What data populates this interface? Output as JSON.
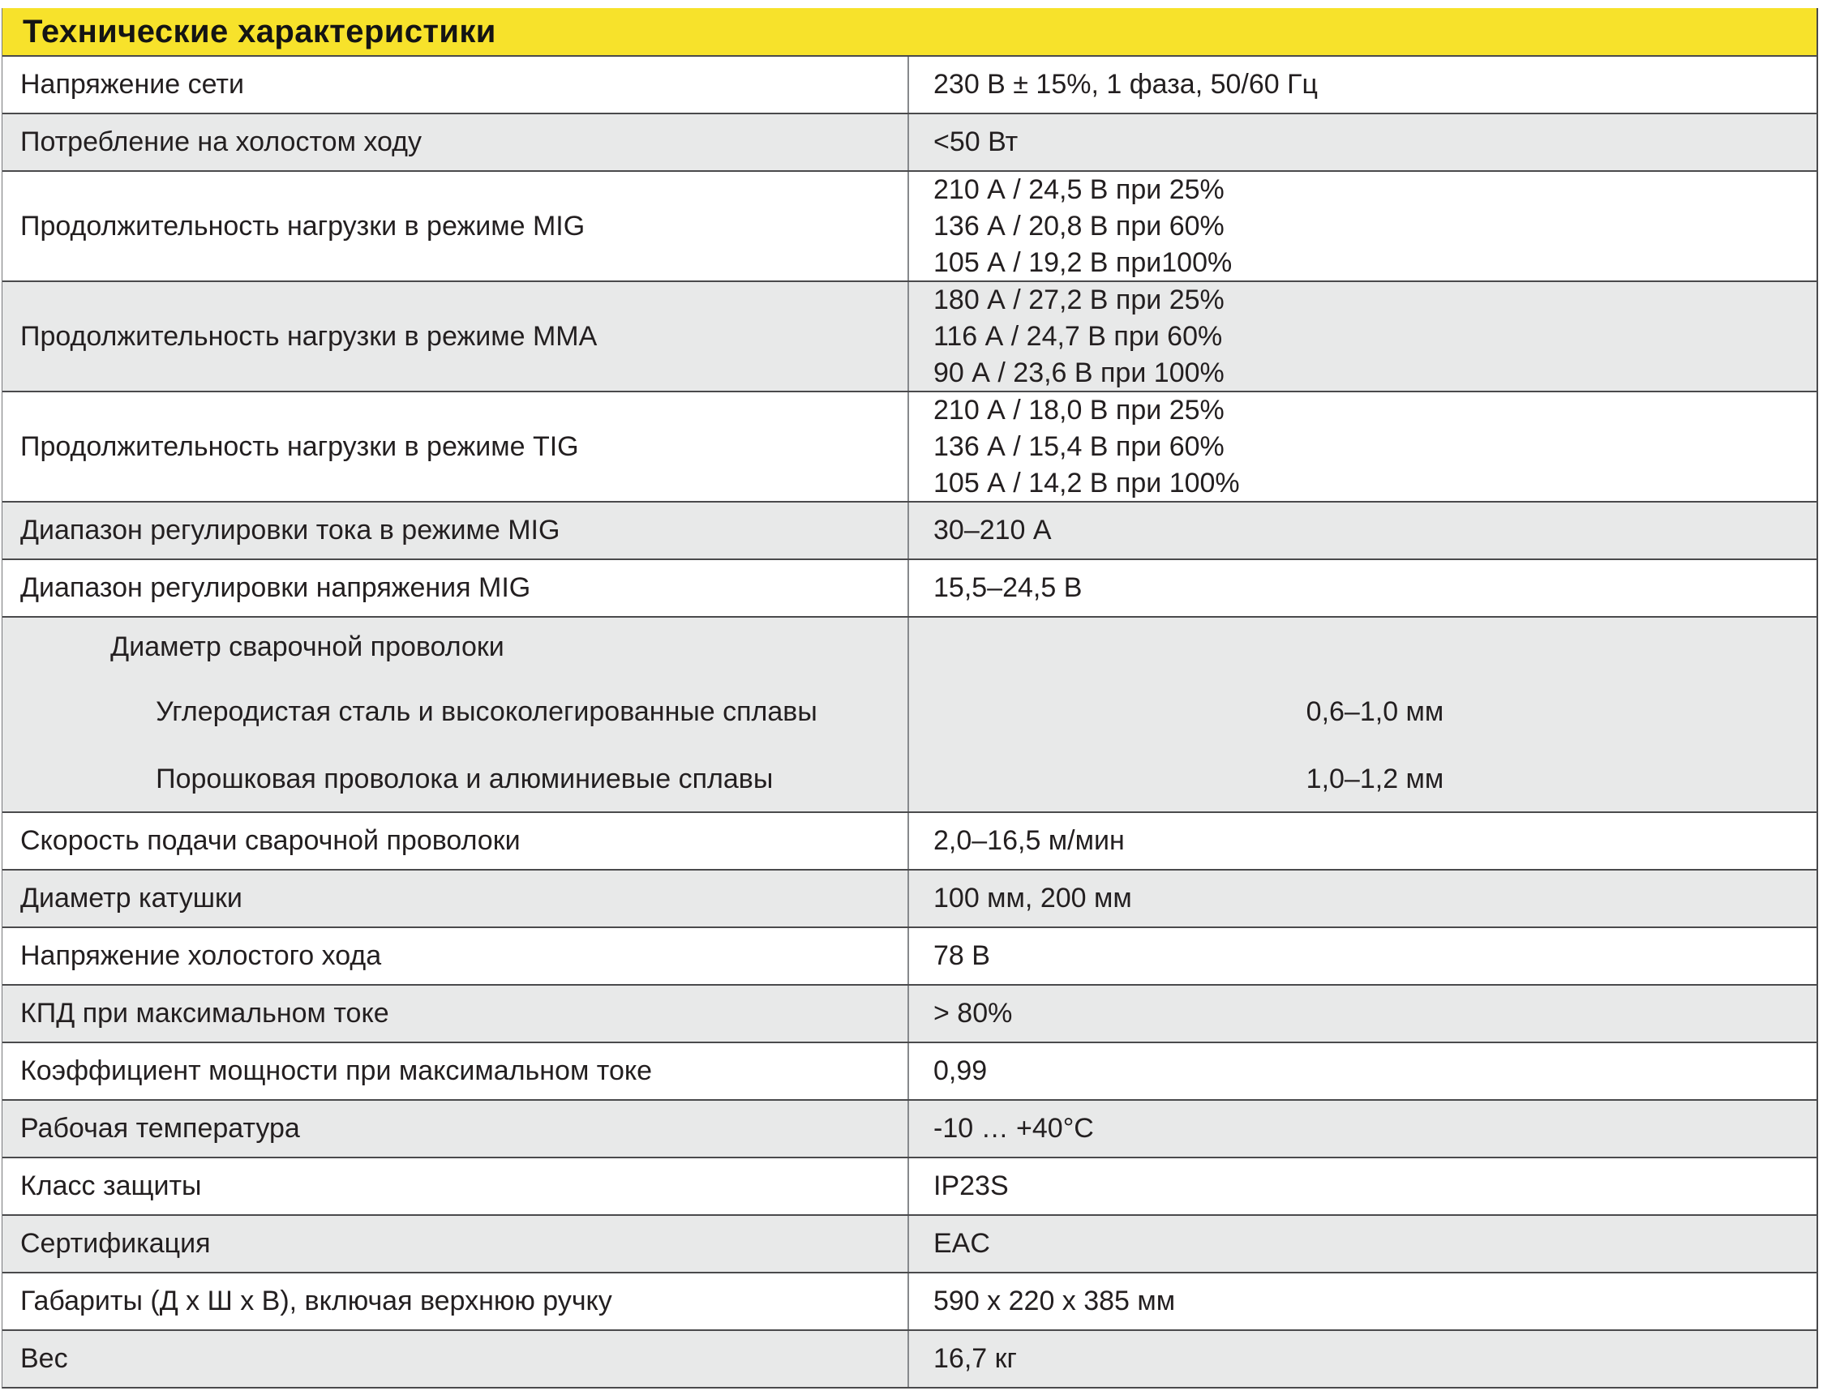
{
  "table": {
    "title": "Технические характеристики",
    "colors": {
      "header_bg": "#F7E22B",
      "row_alt_bg": "#E8E9E9",
      "border_dark": "#4a4a4c",
      "divider": "#87898c",
      "text": "#231f20"
    },
    "rows": [
      {
        "label": "Напряжение сети",
        "values": [
          "230 В ± 15%, 1 фаза, 50/60 Гц"
        ],
        "shaded": false
      },
      {
        "label": "Потребление на холостом ходу",
        "values": [
          "<50 Вт"
        ],
        "shaded": true
      },
      {
        "label": "Продолжительность нагрузки в режиме MIG",
        "values": [
          "210 А / 24,5 В при 25%",
          "136 А / 20,8 В при 60%",
          "105 А / 19,2 В при100%"
        ],
        "shaded": false
      },
      {
        "label": "Продолжительность нагрузки в режиме ММА",
        "values": [
          "180 А / 27,2 В при 25%",
          "116 А / 24,7 В при 60%",
          "90 А / 23,6 В при 100%"
        ],
        "shaded": true
      },
      {
        "label": "Продолжительность нагрузки в режиме TIG",
        "values": [
          "210 А / 18,0 В при 25%",
          "136 А / 15,4 В при 60%",
          "105 А / 14,2 В при 100%"
        ],
        "shaded": false
      },
      {
        "label": "Диапазон регулировки тока в режиме MIG",
        "values": [
          "30–210 А"
        ],
        "shaded": true
      },
      {
        "label": "Диапазон регулировки напряжения MIG",
        "values": [
          "15,5–24,5 В"
        ],
        "shaded": false
      },
      {
        "label": "Диаметр сварочной проволоки",
        "subrows": [
          {
            "label": "Углеродистая сталь и высоколегированные сплавы",
            "value": "0,6–1,0 мм"
          },
          {
            "label": "Порошковая проволока и алюминиевые сплавы",
            "value": "1,0–1,2 мм"
          }
        ],
        "shaded": true
      },
      {
        "label": "Скорость подачи сварочной проволоки",
        "values": [
          "2,0–16,5 м/мин"
        ],
        "shaded": false
      },
      {
        "label": "Диаметр катушки",
        "values": [
          "100 мм, 200 мм"
        ],
        "shaded": true
      },
      {
        "label": "Напряжение холостого хода",
        "values": [
          "78 В"
        ],
        "shaded": false
      },
      {
        "label": "КПД при максимальном токе",
        "values": [
          "> 80%"
        ],
        "shaded": true
      },
      {
        "label": "Коэффициент мощности при максимальном токе",
        "values": [
          "0,99"
        ],
        "shaded": false
      },
      {
        "label": "Рабочая температура",
        "values": [
          "-10 … +40°C"
        ],
        "shaded": true
      },
      {
        "label": "Класс защиты",
        "values": [
          "IP23S"
        ],
        "shaded": false
      },
      {
        "label": "Сертификация",
        "values": [
          "EAC"
        ],
        "shaded": true
      },
      {
        "label": "Габариты (Д х Ш х В), включая верхнюю ручку",
        "values": [
          "590 х 220 х 385 мм"
        ],
        "shaded": false
      },
      {
        "label": "Вес",
        "values": [
          "16,7 кг"
        ],
        "shaded": true
      }
    ]
  }
}
